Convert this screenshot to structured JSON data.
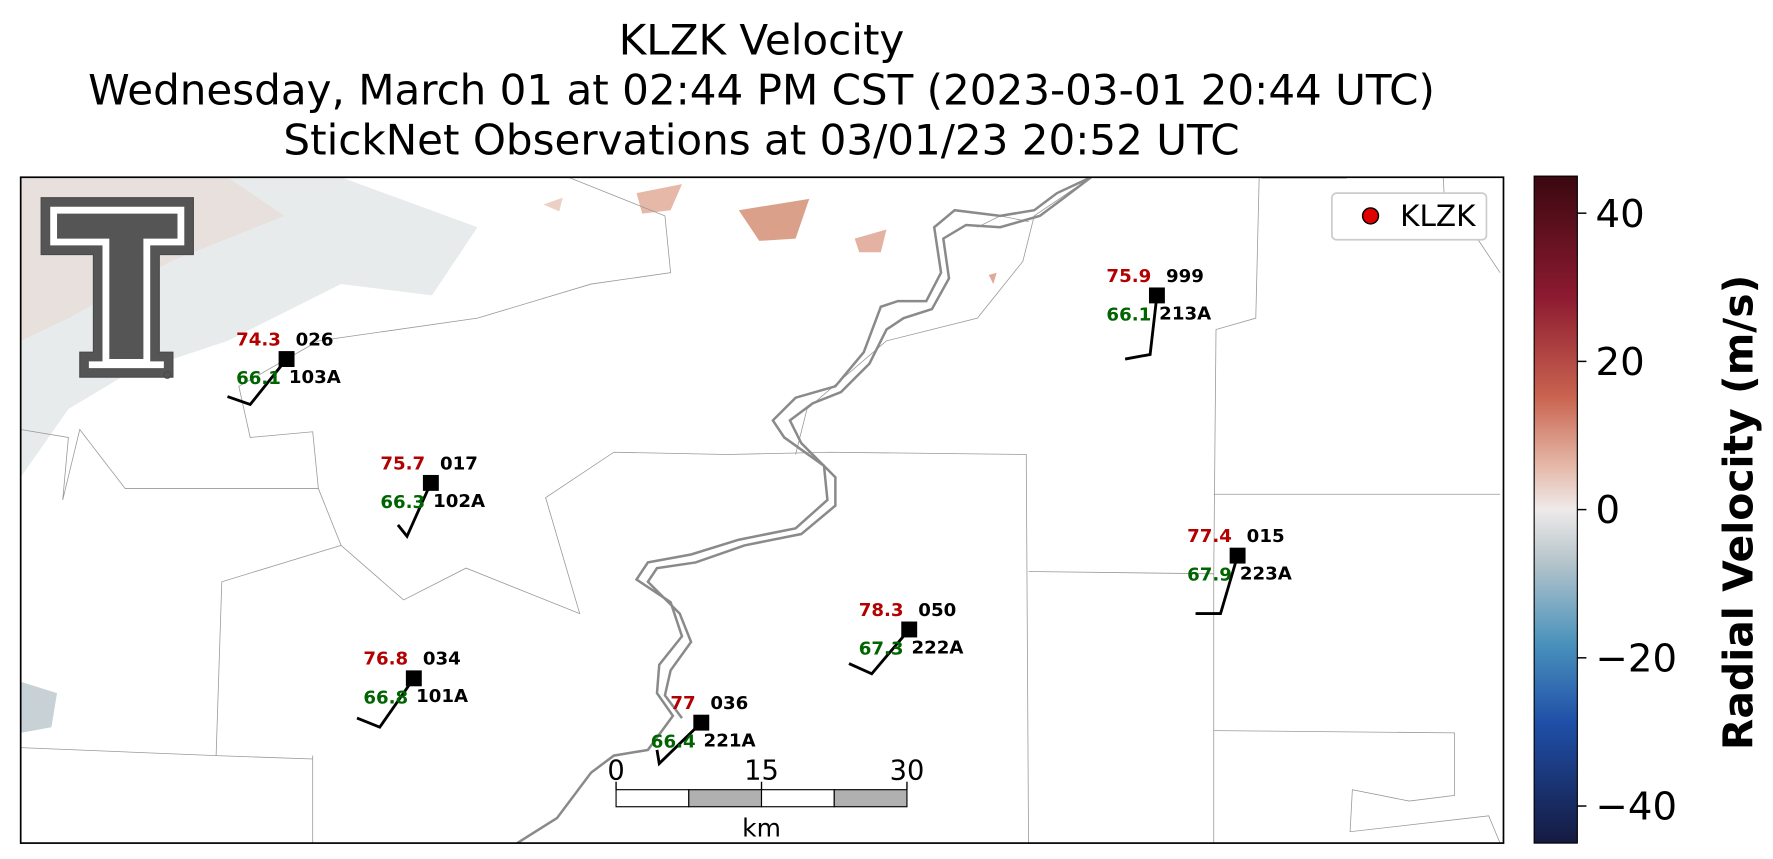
{
  "title": {
    "line1": "KLZK Velocity",
    "line2": "Wednesday, March 01 at 02:44 PM CST (2023-03-01 20:44 UTC)",
    "line3": "StickNet Observations at 03/01/23 20:52 UTC"
  },
  "legend": {
    "label": "KLZK",
    "color": "#e00000"
  },
  "stations": [
    {
      "temperature": 74.3,
      "dewpoint": 66.1,
      "pressure": "026",
      "id": "103A"
    },
    {
      "temperature": 75.7,
      "dewpoint": 66.3,
      "pressure": "017",
      "id": "102A"
    },
    {
      "temperature": 76.8,
      "dewpoint": 66.8,
      "pressure": "034",
      "id": "101A"
    },
    {
      "temperature": 77.0,
      "dewpoint": 66.4,
      "pressure": "036",
      "id": "221A"
    },
    {
      "temperature": 78.3,
      "dewpoint": 67.3,
      "pressure": "050",
      "id": "222A"
    },
    {
      "temperature": 75.9,
      "dewpoint": 66.1,
      "pressure": "999",
      "id": "213A"
    },
    {
      "temperature": 77.4,
      "dewpoint": 67.9,
      "pressure": "015",
      "id": "223A"
    }
  ],
  "scalebar": {
    "ticks": [
      0,
      15,
      30
    ],
    "unit": "km"
  },
  "colorbar": {
    "label": "Radial Velocity (m/s)",
    "lim": [
      -45,
      45
    ],
    "ticks": [
      40,
      20,
      0,
      {
        "value": -20,
        "label": "−20"
      },
      {
        "value": -40,
        "label": "−40"
      }
    ]
  }
}
